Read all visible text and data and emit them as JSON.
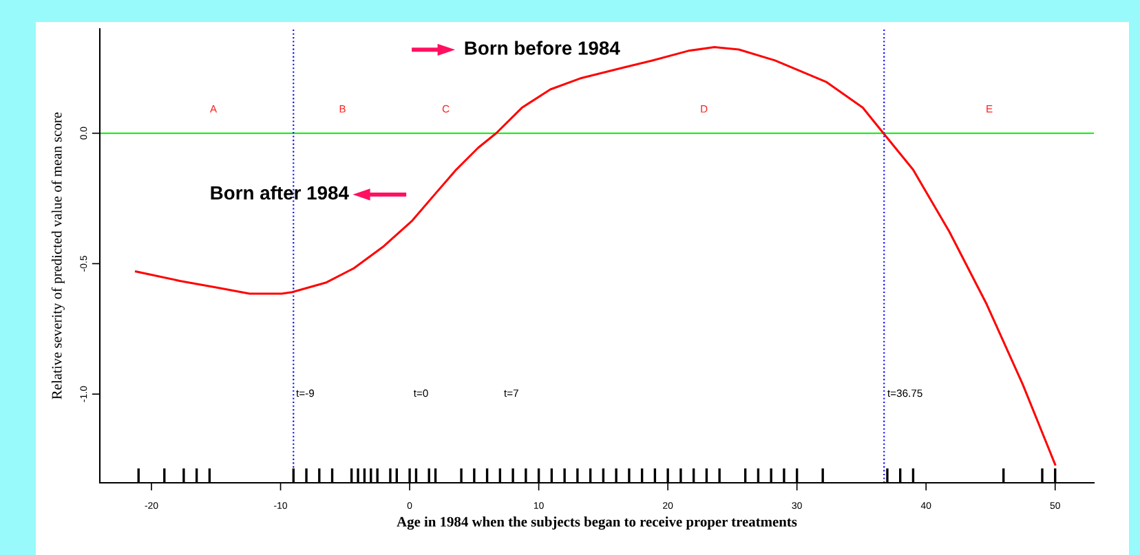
{
  "chart_data": {
    "type": "line",
    "xlabel": "Age in 1984 when the subjects began to receive proper treatments",
    "ylabel": "Relative severity of predicted value of mean score",
    "xlim": [
      -24,
      53
    ],
    "xticks": [
      -20,
      -10,
      0,
      10,
      20,
      30,
      40,
      50
    ],
    "ylim": [
      -1.34,
      0.4
    ],
    "yticks": [
      {
        "value": 0,
        "label": "0.0"
      },
      -0.5,
      {
        "value": -1,
        "label": "-1.0"
      }
    ],
    "grid": false,
    "series": [
      {
        "color": "#ff0000",
        "x": [
          -21.2,
          -17.8,
          -14.9,
          -12.4,
          -9.9,
          -9.1,
          -6.5,
          -4.3,
          -2.0,
          0.2,
          1.9,
          3.6,
          5.3,
          6.7,
          8.7,
          10.9,
          13.2,
          16.5,
          18.8,
          21.6,
          23.6,
          25.5,
          28.3,
          32.3,
          35.1,
          36.7,
          39.0,
          41.8,
          44.7,
          47.5,
          50
        ],
        "values": [
          -0.53,
          -0.566,
          -0.592,
          -0.615,
          -0.615,
          -0.609,
          -0.573,
          -0.517,
          -0.433,
          -0.335,
          -0.237,
          -0.14,
          -0.056,
          0,
          0.098,
          0.168,
          0.21,
          0.251,
          0.279,
          0.316,
          0.33,
          0.321,
          0.279,
          0.196,
          0.098,
          0,
          -0.14,
          -0.377,
          -0.656,
          -0.964,
          -1.27
        ]
      },
      {
        "type": "bar",
        "color": "#000000",
        "x": [
          -21,
          -19,
          -17.5,
          -16.5,
          -15.5,
          -9,
          -8,
          -7,
          -6,
          -4.5,
          -4,
          -3.5,
          -3,
          -2.5,
          -1.5,
          -1,
          0,
          0.5,
          1.5,
          2,
          4,
          5,
          6,
          7,
          8,
          9,
          10,
          11,
          12,
          13,
          14,
          15,
          16,
          17,
          18,
          19,
          20,
          21,
          22,
          23,
          24,
          26,
          27,
          28,
          29,
          30,
          32,
          37,
          38,
          39,
          46,
          49,
          50
        ],
        "base": [
          -1.34,
          -1.34,
          -1.34,
          -1.34,
          -1.34,
          -1.34,
          -1.34,
          -1.34,
          -1.34,
          -1.34,
          -1.34,
          -1.34,
          -1.34,
          -1.34,
          -1.34,
          -1.34,
          -1.34,
          -1.34,
          -1.34,
          -1.34,
          -1.34,
          -1.34,
          -1.34,
          -1.34,
          -1.34,
          -1.34,
          -1.34,
          -1.34,
          -1.34,
          -1.34,
          -1.34,
          -1.34,
          -1.34,
          -1.34,
          -1.34,
          -1.34,
          -1.34,
          -1.34,
          -1.34,
          -1.34,
          -1.34,
          -1.34,
          -1.34,
          -1.34,
          -1.34,
          -1.34,
          -1.34,
          -1.34,
          -1.34,
          -1.34,
          -1.34,
          -1.34,
          -1.34
        ],
        "values": [
          0.055,
          0.055,
          0.055,
          0.055,
          0.055,
          0.055,
          0.055,
          0.055,
          0.055,
          0.055,
          0.055,
          0.055,
          0.055,
          0.055,
          0.055,
          0.055,
          0.055,
          0.055,
          0.055,
          0.055,
          0.055,
          0.055,
          0.055,
          0.055,
          0.055,
          0.055,
          0.055,
          0.055,
          0.055,
          0.055,
          0.055,
          0.055,
          0.055,
          0.055,
          0.055,
          0.055,
          0.055,
          0.055,
          0.055,
          0.055,
          0.055,
          0.055,
          0.055,
          0.055,
          0.055,
          0.055,
          0.055,
          0.055,
          0.055,
          0.055,
          0.055,
          0.055,
          0.055
        ]
      }
    ],
    "ref_lines": [
      {
        "axis": "y",
        "value": 0,
        "color": "#00ee00",
        "line_style": "solid"
      },
      {
        "axis": "x",
        "value": -9,
        "color": "#0000ff",
        "line_style": "dotted"
      },
      {
        "axis": "x",
        "value": 36.75,
        "color": "#0000ff",
        "line_style": "dotted"
      }
    ],
    "annotations": [
      "A",
      "B",
      "C",
      "D",
      "E",
      "t=-9",
      "t=0",
      "t=7",
      "t=36.75",
      "Born before 1984",
      "Born after 1984"
    ]
  }
}
